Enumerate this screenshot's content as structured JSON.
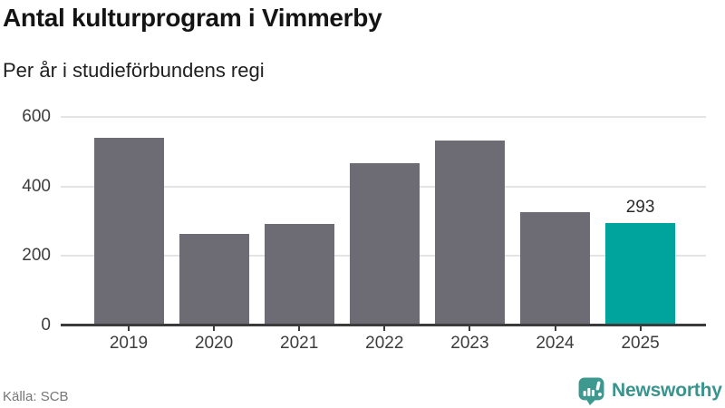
{
  "title": "Antal kulturprogram i Vimmerby",
  "subtitle": "Per år i studieförbundens regi",
  "source": "Källa: SCB",
  "brand": {
    "name": "Newsworthy",
    "icon": "newsworthy-speech-bubble-chart-icon",
    "color": "#38948c"
  },
  "colors": {
    "background": "#ffffff",
    "bar_default": "#6d6c74",
    "bar_highlight": "#00a49c",
    "axis": "#3b3b3b",
    "gridline": "#e4e4e4",
    "tick_label": "#3d3d3d",
    "value_label": "#2c2c2c",
    "source_text": "#767676"
  },
  "chart_data": {
    "type": "bar",
    "title": "Antal kulturprogram i Vimmerby",
    "subtitle": "Per år i studieförbundens regi",
    "categories": [
      "2019",
      "2020",
      "2021",
      "2022",
      "2023",
      "2024",
      "2025"
    ],
    "values": [
      540,
      263,
      292,
      467,
      532,
      326,
      293
    ],
    "value_labels": [
      "",
      "",
      "",
      "",
      "",
      "",
      "293"
    ],
    "highlight_index": 6,
    "xlabel": "",
    "ylabel": "",
    "ylim": [
      0,
      600
    ],
    "yticks": [
      0,
      200,
      400,
      600
    ],
    "ytick_labels": [
      "0",
      "200",
      "400",
      "600"
    ],
    "grid": true,
    "legend": false
  }
}
